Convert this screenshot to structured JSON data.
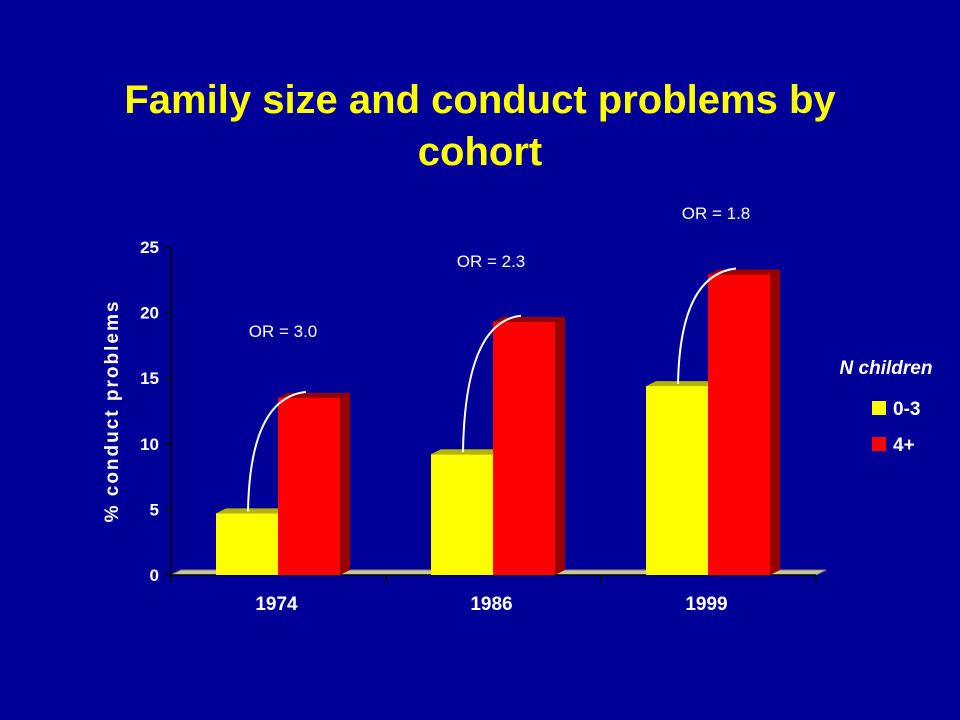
{
  "title": "Family size and conduct problems by cohort",
  "colors": {
    "background": "#000099",
    "title": "#ffff00",
    "series_0_3_front": "#ffff00",
    "series_0_3_side": "#b3b300",
    "series_4plus_front": "#ff0000",
    "series_4plus_side": "#990000",
    "floor": "#c8c8a0"
  },
  "chart_data": {
    "type": "bar",
    "title": "Family size and conduct problems by cohort",
    "xlabel": "",
    "ylabel": "% conduct problems",
    "ylim": [
      0,
      25
    ],
    "yticks": [
      "0",
      "5",
      "10",
      "15",
      "20",
      "25"
    ],
    "categories": [
      "1974",
      "1986",
      "1999"
    ],
    "series": [
      {
        "name": "0-3",
        "values": [
          4.7,
          9.2,
          14.4
        ]
      },
      {
        "name": "4+",
        "values": [
          13.5,
          19.3,
          22.9
        ]
      }
    ],
    "annotations": [
      "OR = 3.0",
      "OR = 2.3",
      "OR = 1.8"
    ],
    "legend_title": "N children",
    "legend": "right",
    "grid": false,
    "style": "3d-clustered"
  }
}
